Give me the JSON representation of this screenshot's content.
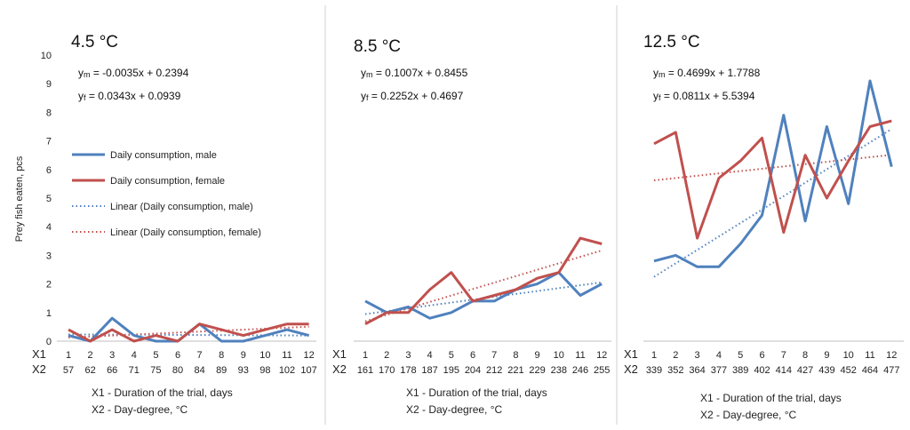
{
  "y_axis_label": "Prey fish eaten, pcs",
  "footnotes": {
    "x1": "X1 - Duration of the trial, days",
    "x2": "X2 - Day-degree,  °C"
  },
  "row_labels": {
    "x1": "X1",
    "x2": "X2"
  },
  "legend": [
    {
      "label": "Daily consumption, male",
      "color": "#4f81bd",
      "style": "solid"
    },
    {
      "label": "Daily consumption, female",
      "color": "#c0504d",
      "style": "solid"
    },
    {
      "label": "Linear (Daily consumption, male)",
      "color": "#4f81bd",
      "style": "dotted"
    },
    {
      "label": "Linear (Daily consumption, female)",
      "color": "#c0504d",
      "style": "dotted"
    }
  ],
  "colors": {
    "male": "#4f81bd",
    "female": "#c0504d",
    "divider": "#d0d0d0",
    "axis": "#bfbfbf"
  },
  "chart_data": [
    {
      "type": "line",
      "title": "4.5 °C",
      "eq_male": {
        "prefix": "y",
        "sub": "m",
        "rest": " = -0.0035x + 0.2394"
      },
      "eq_female": {
        "prefix": "y",
        "sub": "f",
        "rest": " = 0.0343x + 0.0939"
      },
      "yticks": [
        "0",
        "1",
        "2",
        "3",
        "4",
        "5",
        "6",
        "7",
        "8",
        "9",
        "10"
      ],
      "ylim": [
        0,
        10
      ],
      "x1": [
        "1",
        "2",
        "3",
        "4",
        "5",
        "6",
        "7",
        "8",
        "9",
        "10",
        "11",
        "12"
      ],
      "x2": [
        "57",
        "62",
        "66",
        "71",
        "75",
        "80",
        "84",
        "89",
        "93",
        "98",
        "102",
        "107"
      ],
      "series": [
        {
          "name": "Daily consumption, male",
          "values": [
            0.2,
            0.0,
            0.8,
            0.2,
            0.0,
            0.0,
            0.6,
            0.0,
            0.0,
            0.2,
            0.4,
            0.2
          ]
        },
        {
          "name": "Daily consumption, female",
          "values": [
            0.4,
            0.0,
            0.4,
            0.0,
            0.2,
            0.0,
            0.6,
            0.4,
            0.2,
            0.4,
            0.6,
            0.6
          ]
        }
      ],
      "trend_male": {
        "slope": -0.0035,
        "intercept": 0.2394
      },
      "trend_female": {
        "slope": 0.0343,
        "intercept": 0.0939
      }
    },
    {
      "type": "line",
      "title": "8.5 °C",
      "eq_male": {
        "prefix": "y",
        "sub": "m",
        "rest": " = 0.1007x + 0.8455"
      },
      "eq_female": {
        "prefix": "y",
        "sub": "f",
        "rest": " = 0.2252x + 0.4697"
      },
      "x1": [
        "1",
        "2",
        "3",
        "4",
        "5",
        "6",
        "7",
        "8",
        "9",
        "10",
        "11",
        "12"
      ],
      "x2": [
        "161",
        "170",
        "178",
        "187",
        "195",
        "204",
        "212",
        "221",
        "229",
        "238",
        "246",
        "255"
      ],
      "ylim": [
        0,
        10
      ],
      "series": [
        {
          "name": "Daily consumption, male",
          "values": [
            1.4,
            1.0,
            1.2,
            0.8,
            1.0,
            1.4,
            1.4,
            1.8,
            2.0,
            2.4,
            1.6,
            2.0
          ]
        },
        {
          "name": "Daily consumption, female",
          "values": [
            0.6,
            1.0,
            1.0,
            1.8,
            2.4,
            1.4,
            1.6,
            1.8,
            2.2,
            2.4,
            3.6,
            3.4
          ]
        }
      ],
      "trend_male": {
        "slope": 0.1007,
        "intercept": 0.8455
      },
      "trend_female": {
        "slope": 0.2252,
        "intercept": 0.4697
      }
    },
    {
      "type": "line",
      "title": "12.5 °C",
      "eq_male": {
        "prefix": "y",
        "sub": "m",
        "rest": " = 0.4699x + 1.7788"
      },
      "eq_female": {
        "prefix": "y",
        "sub": "f",
        "rest": " = 0.0811x + 5.5394"
      },
      "x1": [
        "1",
        "2",
        "3",
        "4",
        "5",
        "6",
        "7",
        "8",
        "9",
        "10",
        "11",
        "12"
      ],
      "x2": [
        "339",
        "352",
        "364",
        "377",
        "389",
        "402",
        "414",
        "427",
        "439",
        "452",
        "464",
        "477"
      ],
      "ylim": [
        0,
        10
      ],
      "series": [
        {
          "name": "Daily consumption, male",
          "values": [
            2.8,
            3.0,
            2.6,
            2.6,
            3.4,
            4.4,
            7.9,
            4.2,
            7.5,
            4.8,
            9.1,
            6.1
          ]
        },
        {
          "name": "Daily consumption, female",
          "values": [
            6.9,
            7.3,
            3.6,
            5.7,
            6.3,
            7.1,
            3.8,
            6.5,
            5.0,
            6.3,
            7.5,
            7.7
          ]
        }
      ],
      "trend_male": {
        "slope": 0.4699,
        "intercept": 1.7788
      },
      "trend_female": {
        "slope": 0.0811,
        "intercept": 5.5394
      }
    }
  ]
}
